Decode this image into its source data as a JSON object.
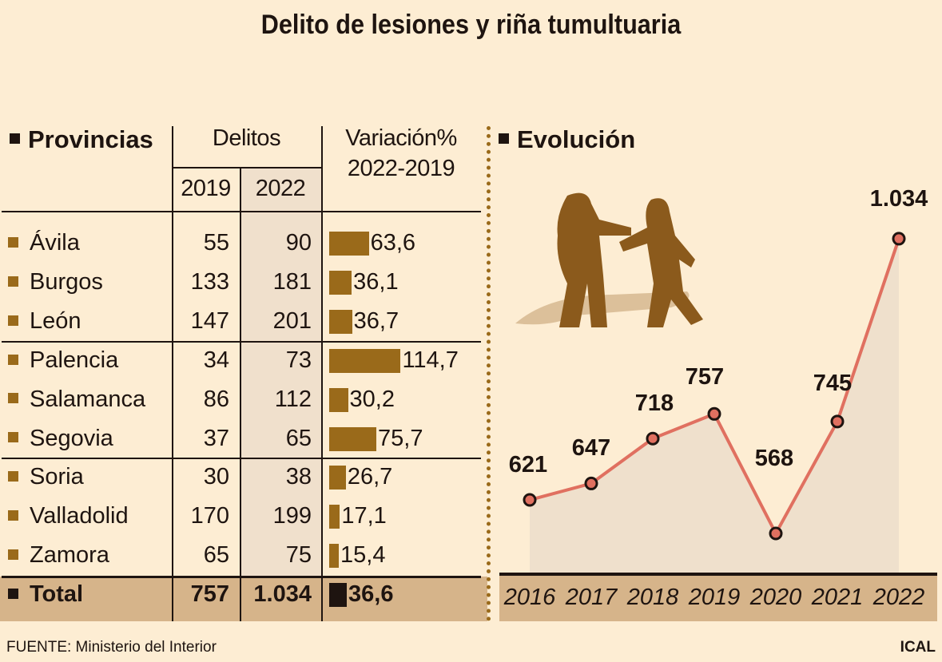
{
  "title": "Delito de lesiones y riña tumultuaria",
  "table": {
    "header_provinces": "Provincias",
    "header_crimes": "Delitos",
    "header_year_1": "2019",
    "header_year_2": "2022",
    "header_variation": "Variación%",
    "header_variation_period": "2022-2019",
    "rows": [
      {
        "province": "Ávila",
        "y2019": "55",
        "y2022": "90",
        "variation": "63,6",
        "variation_value": 63.6
      },
      {
        "province": "Burgos",
        "y2019": "133",
        "y2022": "181",
        "variation": "36,1",
        "variation_value": 36.1
      },
      {
        "province": "León",
        "y2019": "147",
        "y2022": "201",
        "variation": "36,7",
        "variation_value": 36.7
      },
      {
        "province": "Palencia",
        "y2019": "34",
        "y2022": "73",
        "variation": "114,7",
        "variation_value": 114.7
      },
      {
        "province": "Salamanca",
        "y2019": "86",
        "y2022": "112",
        "variation": "30,2",
        "variation_value": 30.2
      },
      {
        "province": "Segovia",
        "y2019": "37",
        "y2022": "65",
        "variation": "75,7",
        "variation_value": 75.7
      },
      {
        "province": "Soria",
        "y2019": "30",
        "y2022": "38",
        "variation": "26,7",
        "variation_value": 26.7
      },
      {
        "province": "Valladolid",
        "y2019": "170",
        "y2022": "199",
        "variation": "17,1",
        "variation_value": 17.1
      },
      {
        "province": "Zamora",
        "y2019": "65",
        "y2022": "75",
        "variation": "15,4",
        "variation_value": 15.4
      }
    ],
    "total": {
      "province": "Total",
      "y2019": "757",
      "y2022": "1.034",
      "variation": "36,6",
      "variation_value": 36.6
    }
  },
  "chart_data": {
    "type": "line",
    "title": "Evolución",
    "x": [
      "2016",
      "2017",
      "2018",
      "2019",
      "2020",
      "2021",
      "2022"
    ],
    "values": [
      621,
      647,
      718,
      757,
      568,
      745,
      1034
    ],
    "labels": [
      "621",
      "647",
      "718",
      "757",
      "568",
      "745",
      "1.034"
    ]
  },
  "colors": {
    "background": "#fdedd3",
    "bar": "#9a6a1a",
    "line": "#e07060",
    "area": "#efe0cc",
    "total_band": "#d6b48a"
  },
  "footer": {
    "source": "FUENTE: Ministerio del Interior",
    "credit": "ICAL"
  }
}
